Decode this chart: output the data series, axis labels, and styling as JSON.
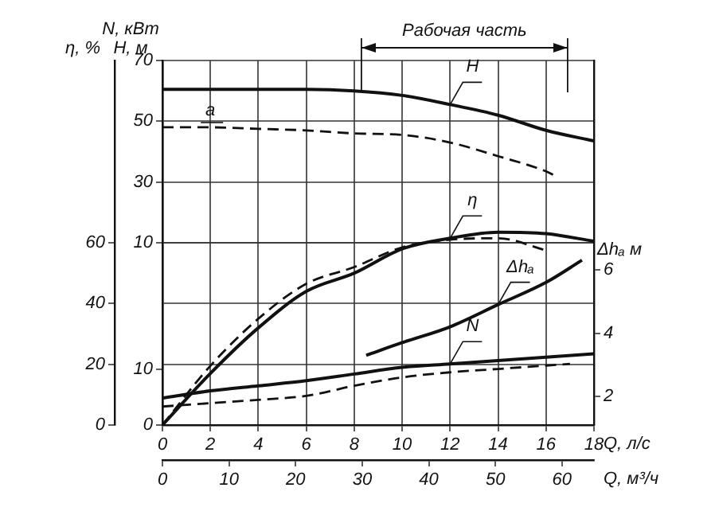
{
  "chart_data": [
    {
      "type": "line",
      "xlabel": "Q, л/с",
      "x2label": "Q, м³/ч",
      "ylabel": "H, м",
      "y2label": "η, %",
      "xlim": [
        0,
        18
      ],
      "xticks": [
        0,
        2,
        4,
        6,
        8,
        10,
        12,
        14,
        16,
        18
      ],
      "x2lim": [
        0,
        64.8
      ],
      "x2ticks": [
        0,
        10,
        20,
        30,
        40,
        50,
        60
      ],
      "ylim": [
        -50,
        70
      ],
      "yticks": [
        10,
        30,
        50,
        70
      ],
      "y2lim": [
        0,
        120
      ],
      "y2ticks": [
        0,
        20,
        40,
        60
      ],
      "grid": true,
      "marker": "none",
      "series": [
        {
          "name": "H",
          "color": "#111111",
          "line_style": "solid",
          "x": [
            0,
            2,
            4,
            6,
            8,
            10,
            12,
            14,
            16,
            18
          ],
          "values": [
            60.5,
            60.5,
            60.5,
            60.5,
            60,
            58.5,
            55.5,
            52,
            47,
            43.5
          ]
        },
        {
          "color": "#111111",
          "line_style": "dashed",
          "x": [
            0,
            2,
            4,
            6,
            8,
            10,
            12,
            14,
            16,
            16.5
          ],
          "values": [
            48,
            48,
            47.5,
            47,
            46,
            45.5,
            43,
            38.5,
            33.5,
            31.5
          ]
        },
        {
          "name": "η",
          "color": "#111111",
          "axis": "y2",
          "line_style": "solid",
          "x": [
            0,
            2,
            4,
            6,
            8,
            10,
            12,
            14,
            16,
            18
          ],
          "values": [
            0,
            17,
            32,
            44,
            50,
            58,
            61.5,
            63.5,
            63,
            60.5
          ]
        },
        {
          "color": "#111111",
          "axis": "y2",
          "line_style": "dashed",
          "x": [
            0,
            2,
            4,
            6,
            8,
            10,
            12,
            14,
            16
          ],
          "values": [
            0,
            19.5,
            35,
            46.5,
            52,
            58.5,
            61,
            61.5,
            57.5
          ]
        }
      ],
      "ref_lines": [
        {
          "axis": "x",
          "value": 8.3
        },
        {
          "axis": "x",
          "value": 16.9
        }
      ],
      "annotations": [
        "Рабочая часть",
        {
          "text": "а",
          "x": 2,
          "y": 48
        }
      ]
    },
    {
      "type": "line",
      "ylabel": "N, кВт",
      "y2label": "Δhₐ м",
      "xlim": [
        0,
        18
      ],
      "tick_labels": "y",
      "ylim": [
        0,
        65
      ],
      "yticks": [
        0,
        10
      ],
      "y2lim": [
        1.1,
        12.6
      ],
      "y2ticks": [
        2,
        4,
        6
      ],
      "marker": "none",
      "series": [
        {
          "name": "Δhₐ",
          "color": "#111111",
          "axis": "y2",
          "line_style": "solid",
          "x": [
            8.5,
            10,
            12,
            14,
            16,
            17.5
          ],
          "values": [
            3.3,
            3.7,
            4.2,
            4.9,
            5.6,
            6.3
          ]
        },
        {
          "name": "N",
          "color": "#111111",
          "line_style": "solid",
          "x": [
            0,
            2,
            4,
            6,
            8,
            10,
            12,
            14,
            16,
            18
          ],
          "values": [
            4.8,
            6.1,
            7,
            7.9,
            9.1,
            10.3,
            10.9,
            11.5,
            12.1,
            12.7
          ]
        },
        {
          "color": "#111111",
          "line_style": "dashed",
          "x": [
            0,
            2,
            4,
            6,
            8,
            10,
            12,
            14,
            16,
            17
          ],
          "values": [
            3.3,
            3.9,
            4.5,
            5.2,
            7,
            8.5,
            9.4,
            10,
            10.6,
            10.9
          ]
        }
      ]
    }
  ]
}
